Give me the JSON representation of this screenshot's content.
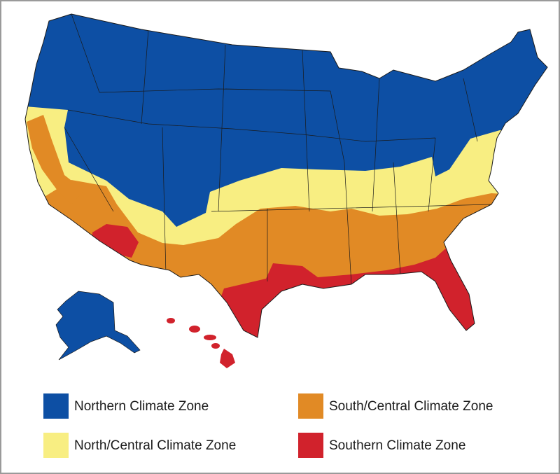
{
  "legend": [
    {
      "label": "Northern Climate Zone",
      "color": "#0d4fa4"
    },
    {
      "label": "North/Central Climate Zone",
      "color": "#f8ee82"
    },
    {
      "label": "South/Central Climate Zone",
      "color": "#e18a25"
    },
    {
      "label": "Southern Climate Zone",
      "color": "#d1222c"
    }
  ]
}
